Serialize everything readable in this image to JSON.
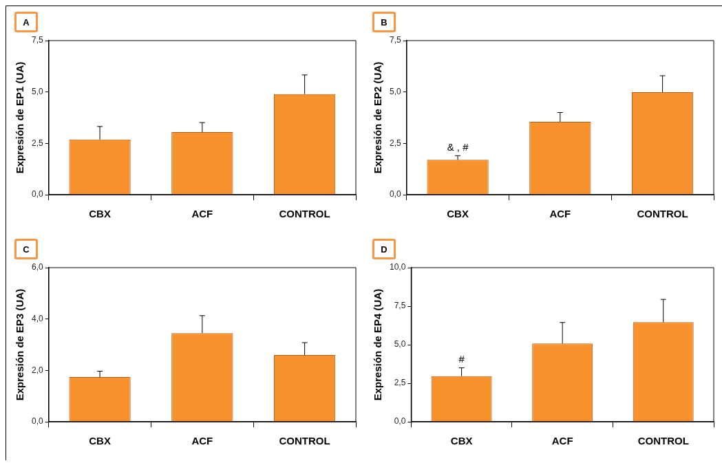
{
  "chart_data": [
    {
      "type": "bar",
      "title": "A",
      "ylabel": "Expresión de EP1 (UA)",
      "categories": [
        "CBX",
        "ACF",
        "CONTROL"
      ],
      "values": [
        2.69,
        3.05,
        4.9
      ],
      "errors": [
        [
          2.69,
          3.32
        ],
        [
          3.05,
          3.51
        ],
        [
          4.9,
          5.83
        ]
      ],
      "color": "#f7922e",
      "ylim": [
        0,
        7.5
      ],
      "yticks": [
        {
          "value": 0,
          "label": "0,0"
        },
        {
          "value": 2.5,
          "label": "2,5"
        },
        {
          "value": 5,
          "label": "5,0"
        },
        {
          "value": 7.5,
          "label": "7,5"
        }
      ],
      "grid": false,
      "legend": false
    },
    {
      "type": "bar",
      "title": "B",
      "ylabel": "Expresión de EP2 (UA)",
      "categories": [
        "CBX",
        "ACF",
        "CONTROL"
      ],
      "values": [
        1.7,
        3.55,
        4.99
      ],
      "errors": [
        [
          1.7,
          1.9
        ],
        [
          3.55,
          4.0
        ],
        [
          4.99,
          5.79
        ]
      ],
      "color": "#f7922e",
      "ylim": [
        0,
        7.5
      ],
      "yticks": [
        {
          "value": 0,
          "label": "0,0"
        },
        {
          "value": 2.5,
          "label": "2,5"
        },
        {
          "value": 5,
          "label": "5,0"
        },
        {
          "value": 7.5,
          "label": "7,5"
        }
      ],
      "grid": false,
      "legend": false,
      "annotations": [
        {
          "text": "& , #",
          "x": "CBX",
          "y": 1.7
        }
      ]
    },
    {
      "type": "bar",
      "title": "C",
      "ylabel": "Expresión de EP3 (UA)",
      "categories": [
        "CBX",
        "ACF",
        "CONTROL"
      ],
      "values": [
        1.74,
        3.45,
        2.6
      ],
      "errors": [
        [
          1.74,
          1.97
        ],
        [
          3.45,
          4.13
        ],
        [
          2.6,
          3.08
        ]
      ],
      "color": "#f7922e",
      "ylim": [
        0,
        6
      ],
      "yticks": [
        {
          "value": 0,
          "label": "0,0"
        },
        {
          "value": 2,
          "label": "2,0"
        },
        {
          "value": 4,
          "label": "4,0"
        },
        {
          "value": 6,
          "label": "6,0"
        }
      ],
      "grid": false,
      "legend": false
    },
    {
      "type": "bar",
      "title": "D",
      "ylabel": "Expresión de EP4 (UA)",
      "categories": [
        "CBX",
        "ACF",
        "CONTROL"
      ],
      "values": [
        2.96,
        5.08,
        6.46
      ],
      "errors": [
        [
          2.96,
          3.5
        ],
        [
          5.08,
          6.44
        ],
        [
          6.46,
          7.94
        ]
      ],
      "color": "#f7922e",
      "ylim": [
        0,
        10
      ],
      "yticks": [
        {
          "value": 0,
          "label": "0,0"
        },
        {
          "value": 2.5,
          "label": "2,5"
        },
        {
          "value": 5,
          "label": "5,0"
        },
        {
          "value": 7.5,
          "label": "7,5"
        },
        {
          "value": 10,
          "label": "10,0"
        }
      ],
      "grid": false,
      "legend": false,
      "annotations": [
        {
          "text": "#",
          "x": "CBX",
          "y": 2.96
        }
      ]
    }
  ]
}
